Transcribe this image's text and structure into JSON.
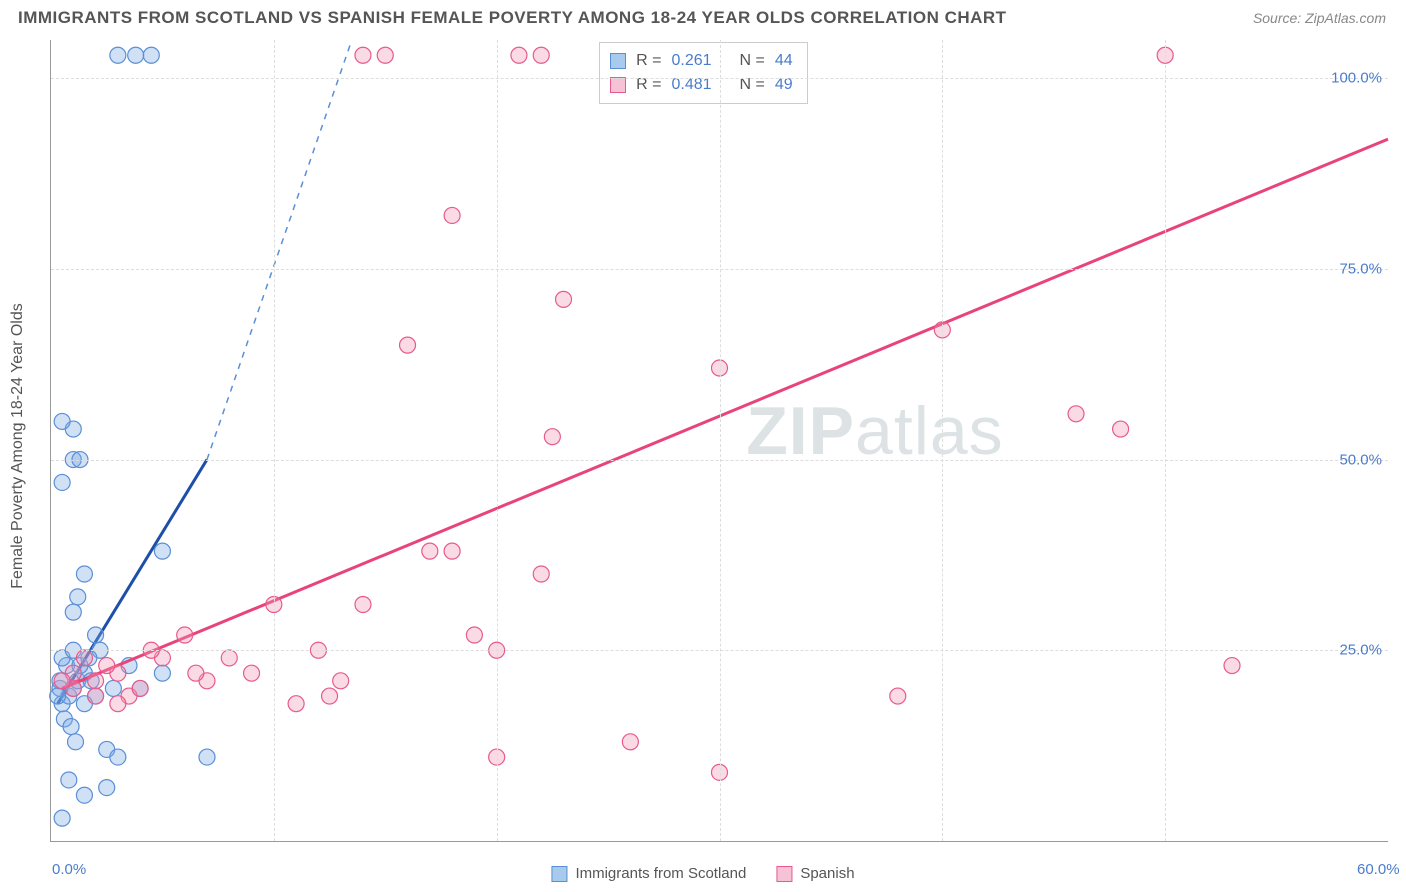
{
  "title": "IMMIGRANTS FROM SCOTLAND VS SPANISH FEMALE POVERTY AMONG 18-24 YEAR OLDS CORRELATION CHART",
  "source": "Source: ZipAtlas.com",
  "ylabel": "Female Poverty Among 18-24 Year Olds",
  "watermark_a": "ZIP",
  "watermark_b": "atlas",
  "axes": {
    "xlim": [
      0,
      60
    ],
    "ylim": [
      0,
      105
    ],
    "xticks": [
      0,
      60
    ],
    "yticks": [
      25,
      50,
      75,
      100
    ],
    "xtick_labels": [
      "0.0%",
      "60.0%"
    ],
    "ytick_labels": [
      "25.0%",
      "50.0%",
      "75.0%",
      "100.0%"
    ],
    "xgrid": [
      10,
      20,
      30,
      40,
      50
    ],
    "grid_color": "#dddddd",
    "axis_color": "#999999"
  },
  "series": [
    {
      "name": "Immigrants from Scotland",
      "fill": "rgba(120,170,230,0.35)",
      "stroke": "#5a8fd6",
      "swatch_fill": "#a8caed",
      "swatch_stroke": "#5a8fd6",
      "marker_r": 8,
      "stats": {
        "R": "0.261",
        "N": "44"
      },
      "trend": {
        "solid_color": "#1e4fa8",
        "solid_width": 3,
        "dash_color": "#5a8fd6",
        "x1": 0.3,
        "y1": 18,
        "x_solid_end": 7,
        "y_solid_end": 50,
        "x2": 13.5,
        "y2": 105
      },
      "points": [
        [
          0.5,
          18
        ],
        [
          0.8,
          19
        ],
        [
          1.0,
          20
        ],
        [
          1.2,
          21
        ],
        [
          1.5,
          22
        ],
        [
          0.7,
          23
        ],
        [
          1.8,
          21
        ],
        [
          2.0,
          19
        ],
        [
          0.5,
          24
        ],
        [
          1.0,
          25
        ],
        [
          1.3,
          23
        ],
        [
          0.4,
          20
        ],
        [
          2.2,
          25
        ],
        [
          1.5,
          18
        ],
        [
          0.6,
          16
        ],
        [
          0.9,
          15
        ],
        [
          1.1,
          13
        ],
        [
          2.5,
          12
        ],
        [
          3.0,
          11
        ],
        [
          4.0,
          20
        ],
        [
          5.0,
          22
        ],
        [
          3.5,
          23
        ],
        [
          2.8,
          20
        ],
        [
          1.0,
          30
        ],
        [
          1.2,
          32
        ],
        [
          1.5,
          35
        ],
        [
          0.5,
          47
        ],
        [
          1.0,
          50
        ],
        [
          1.3,
          50
        ],
        [
          1.0,
          54
        ],
        [
          0.5,
          55
        ],
        [
          5.0,
          38
        ],
        [
          7.0,
          11
        ],
        [
          0.5,
          3
        ],
        [
          1.5,
          6
        ],
        [
          2.5,
          7
        ],
        [
          0.8,
          8
        ],
        [
          3.0,
          103
        ],
        [
          3.8,
          103
        ],
        [
          4.5,
          103
        ],
        [
          0.3,
          19
        ],
        [
          0.4,
          21
        ],
        [
          1.7,
          24
        ],
        [
          2.0,
          27
        ]
      ]
    },
    {
      "name": "Spanish",
      "fill": "rgba(240,150,180,0.35)",
      "stroke": "#e85a8c",
      "swatch_fill": "#f5c3d5",
      "swatch_stroke": "#e85a8c",
      "marker_r": 8,
      "stats": {
        "R": "0.481",
        "N": "49"
      },
      "trend": {
        "solid_color": "#e8447a",
        "solid_width": 3,
        "x1": 0.5,
        "y1": 20,
        "x2": 60,
        "y2": 92
      },
      "points": [
        [
          1.0,
          20
        ],
        [
          2.0,
          21
        ],
        [
          3.0,
          22
        ],
        [
          1.5,
          24
        ],
        [
          2.5,
          23
        ],
        [
          3.5,
          19
        ],
        [
          5.0,
          24
        ],
        [
          6.0,
          27
        ],
        [
          7.0,
          21
        ],
        [
          8.0,
          24
        ],
        [
          10.0,
          31
        ],
        [
          11.0,
          18
        ],
        [
          12.0,
          25
        ],
        [
          12.5,
          19
        ],
        [
          13.0,
          21
        ],
        [
          14.0,
          31
        ],
        [
          17.0,
          38
        ],
        [
          18.0,
          38
        ],
        [
          19.0,
          27
        ],
        [
          20.0,
          25
        ],
        [
          22.0,
          35
        ],
        [
          22.5,
          53
        ],
        [
          16.0,
          65
        ],
        [
          18.0,
          82
        ],
        [
          14.0,
          103
        ],
        [
          21.0,
          103
        ],
        [
          22.0,
          103
        ],
        [
          23.0,
          71
        ],
        [
          20.0,
          11
        ],
        [
          26.0,
          13
        ],
        [
          30.0,
          62
        ],
        [
          32.0,
          103
        ],
        [
          33.0,
          103
        ],
        [
          38.0,
          19
        ],
        [
          40.0,
          67
        ],
        [
          46.0,
          56
        ],
        [
          48.0,
          54
        ],
        [
          50.0,
          103
        ],
        [
          53.0,
          23
        ],
        [
          30.0,
          9
        ],
        [
          6.5,
          22
        ],
        [
          4.0,
          20
        ],
        [
          9.0,
          22
        ],
        [
          15.0,
          103
        ],
        [
          2.0,
          19
        ],
        [
          3.0,
          18
        ],
        [
          1.0,
          22
        ],
        [
          4.5,
          25
        ],
        [
          0.5,
          21
        ]
      ]
    }
  ],
  "stats_box": {
    "rows": [
      {
        "series": 0,
        "R_label": "R =",
        "N_label": "N ="
      },
      {
        "series": 1,
        "R_label": "R =",
        "N_label": "N ="
      }
    ]
  },
  "legend": {
    "items": [
      {
        "series": 0
      },
      {
        "series": 1
      }
    ]
  },
  "colors": {
    "title": "#555555",
    "source": "#888888",
    "tick": "#4a7ccc",
    "background": "#ffffff"
  }
}
